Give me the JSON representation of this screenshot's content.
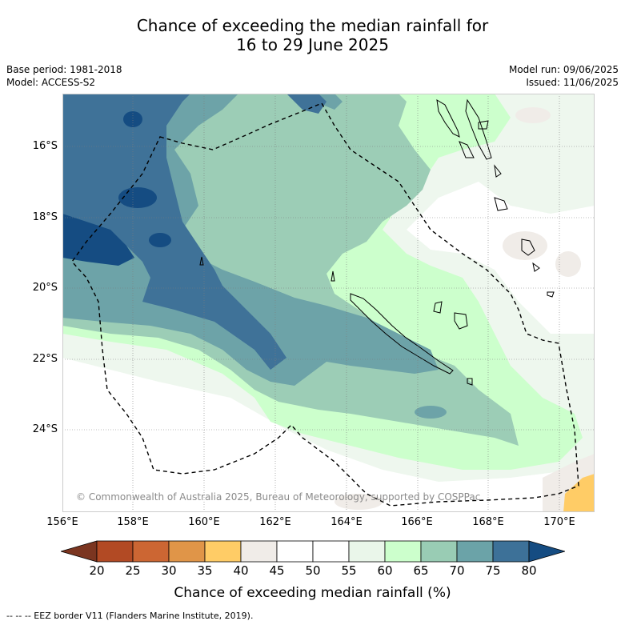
{
  "title": {
    "line1": "Chance of exceeding the median rainfall for",
    "line2": "16 to 29 June 2025"
  },
  "meta": {
    "base_period": "Base period: 1981-2018",
    "model": "Model: ACCESS-S2",
    "model_run": "Model run: 09/06/2025",
    "issued": "Issued: 11/06/2025"
  },
  "axes": {
    "lat_labels": [
      "16°S",
      "18°S",
      "20°S",
      "22°S",
      "24°S"
    ],
    "lon_labels": [
      "156°E",
      "158°E",
      "160°E",
      "162°E",
      "164°E",
      "166°E",
      "168°E",
      "170°E"
    ]
  },
  "colorbar": {
    "ticks": [
      "20",
      "25",
      "30",
      "35",
      "40",
      "45",
      "50",
      "55",
      "60",
      "65",
      "70",
      "75",
      "80"
    ],
    "colors": [
      "#7b3520",
      "#b24a24",
      "#cc6633",
      "#e09548",
      "#ffcc66",
      "#f0ece8",
      "#ffffff",
      "#ffffff",
      "#eaf6ea",
      "#ccffcc",
      "#99ccb4",
      "#6ba3a8",
      "#3d7198",
      "#154c82"
    ],
    "label": "Chance of exceeding median rainfall (%)"
  },
  "copyright": "© Commonwealth of Australia 2025, Bureau of Meteorology, supported by COSPPac",
  "footnote": "--  --  -- EEZ border V11 (Flanders Marine Institute, 2019)."
}
